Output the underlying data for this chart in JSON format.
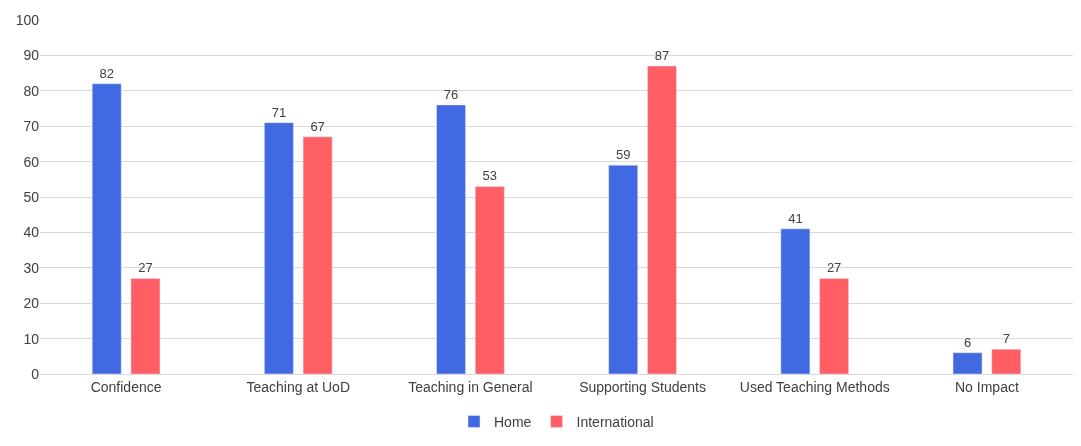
{
  "chart_data": {
    "type": "bar",
    "categories": [
      "Confidence",
      "Teaching at UoD",
      "Teaching in General",
      "Supporting Students",
      "Used Teaching Methods",
      "No Impact"
    ],
    "series": [
      {
        "name": "Home",
        "color": "#4169e1",
        "values": [
          82,
          71,
          76,
          59,
          41,
          6
        ]
      },
      {
        "name": "International",
        "color": "#ff5f64",
        "values": [
          27,
          67,
          53,
          87,
          27,
          7
        ]
      }
    ],
    "ylim": [
      0,
      100
    ],
    "yticks": [
      0,
      10,
      20,
      30,
      40,
      50,
      60,
      70,
      80,
      90,
      100
    ],
    "grid": "y",
    "legend": "bottom",
    "data_labels": true
  }
}
